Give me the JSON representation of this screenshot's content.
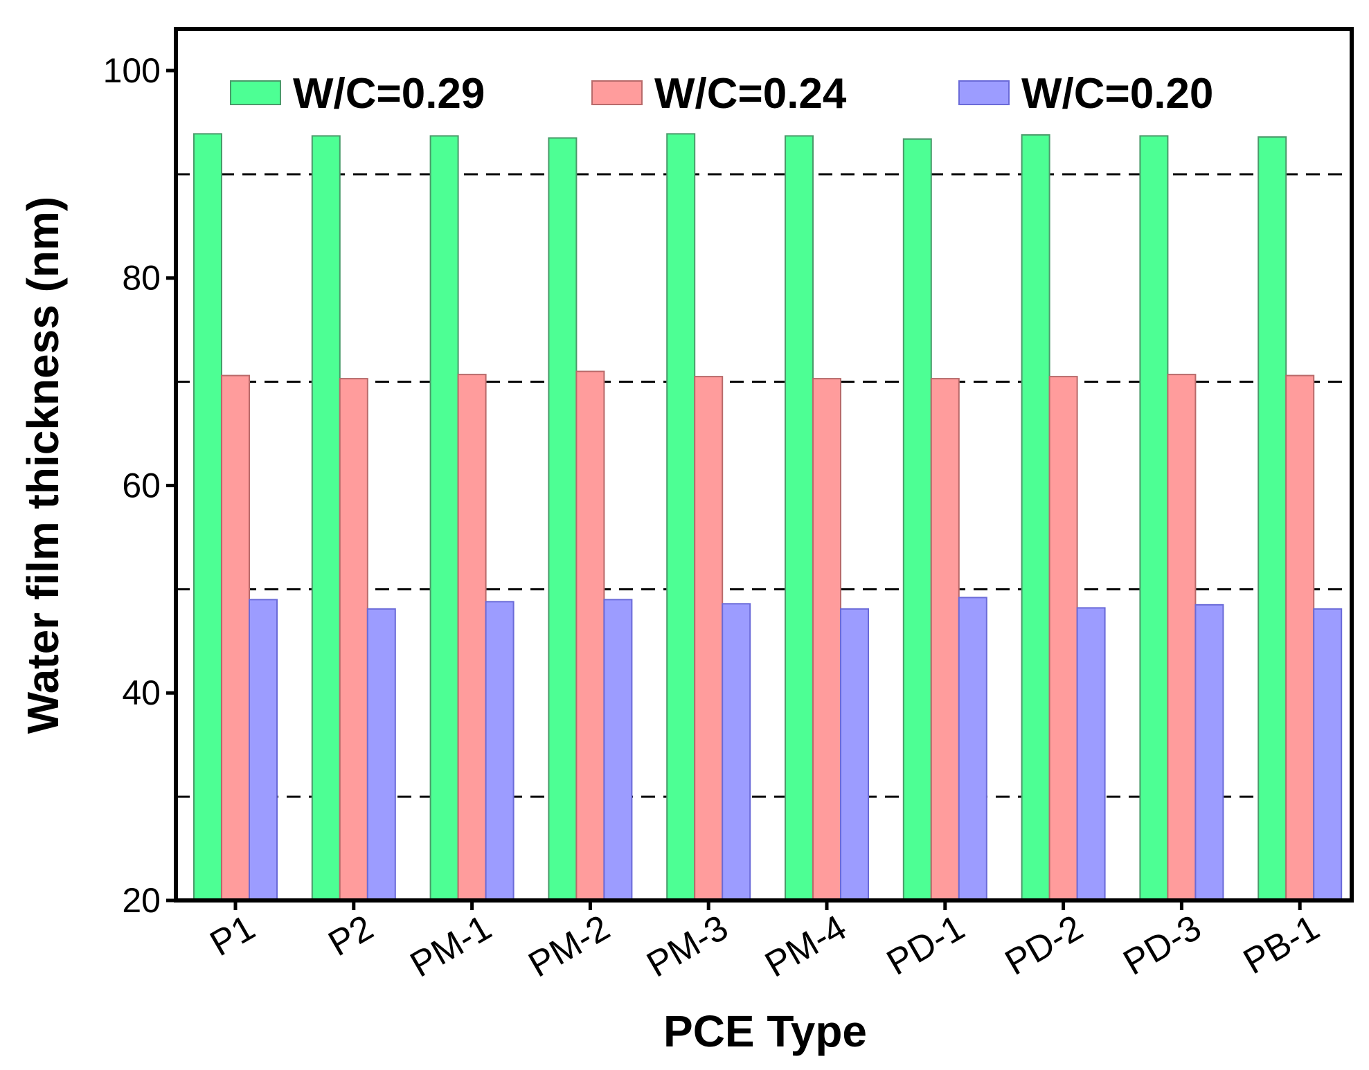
{
  "chart_data": {
    "type": "bar",
    "title": "",
    "xlabel": "PCE Type",
    "ylabel": "Water film thickness (nm)",
    "ylim": [
      20,
      104
    ],
    "yticks": [
      20,
      40,
      60,
      80,
      100
    ],
    "reference_lines": [
      30,
      50,
      70,
      90
    ],
    "legend_position": "top",
    "categories": [
      "P1",
      "P2",
      "PM-1",
      "PM-2",
      "PM-3",
      "PM-4",
      "PD-1",
      "PD-2",
      "PD-3",
      "PB-1"
    ],
    "series": [
      {
        "name": "W/C=0.29",
        "color": "#4dff94",
        "edge": "#4a9a6a",
        "values": [
          93.9,
          93.7,
          93.7,
          93.5,
          93.9,
          93.7,
          93.4,
          93.8,
          93.7,
          93.6
        ]
      },
      {
        "name": "W/C=0.24",
        "color": "#ff9c9c",
        "edge": "#b86a6a",
        "values": [
          70.6,
          70.3,
          70.7,
          71.0,
          70.5,
          70.3,
          70.3,
          70.5,
          70.7,
          70.6
        ]
      },
      {
        "name": "W/C=0.20",
        "color": "#9c9cff",
        "edge": "#6a6ad8",
        "values": [
          49.0,
          48.1,
          48.8,
          49.0,
          48.6,
          48.1,
          49.2,
          48.2,
          48.5,
          48.1
        ]
      }
    ]
  }
}
